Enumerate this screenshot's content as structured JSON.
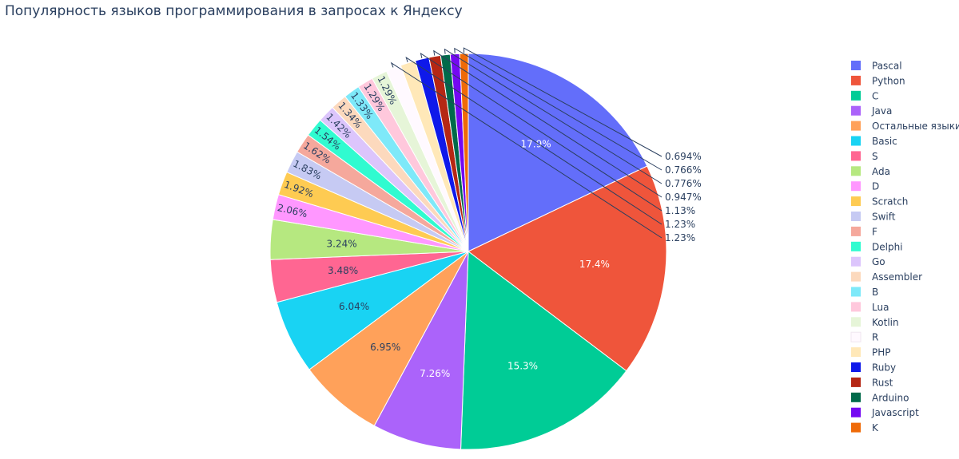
{
  "chart_data": {
    "type": "pie",
    "title": "Популярность языков программирования в запросах к Яндексу",
    "legend_position": "right",
    "slices": [
      {
        "label": "Pascal",
        "value": 17.9,
        "text": "17.9%",
        "color": "#636efa"
      },
      {
        "label": "Python",
        "value": 17.4,
        "text": "17.4%",
        "color": "#ef553b"
      },
      {
        "label": "C",
        "value": 15.3,
        "text": "15.3%",
        "color": "#00cc96"
      },
      {
        "label": "Java",
        "value": 7.26,
        "text": "7.26%",
        "color": "#ab63fa"
      },
      {
        "label": "Остальные языки",
        "value": 6.95,
        "text": "6.95%",
        "color": "#ffa15a"
      },
      {
        "label": "Basic",
        "value": 6.04,
        "text": "6.04%",
        "color": "#19d3f3"
      },
      {
        "label": "S",
        "value": 3.48,
        "text": "3.48%",
        "color": "#ff6692"
      },
      {
        "label": "Ada",
        "value": 3.24,
        "text": "3.24%",
        "color": "#b6e880"
      },
      {
        "label": "D",
        "value": 2.06,
        "text": "2.06%",
        "color": "#ff97ff"
      },
      {
        "label": "Scratch",
        "value": 1.92,
        "text": "1.92%",
        "color": "#fecb52"
      },
      {
        "label": "Swift",
        "value": 1.83,
        "text": "1.83%",
        "color": "#c6caf3"
      },
      {
        "label": "F",
        "value": 1.62,
        "text": "1.62%",
        "color": "#f5a89c"
      },
      {
        "label": "Delphi",
        "value": 1.54,
        "text": "1.54%",
        "color": "#30fbd0"
      },
      {
        "label": "Go",
        "value": 1.42,
        "text": "1.42%",
        "color": "#dcc5fc"
      },
      {
        "label": "Assembler",
        "value": 1.34,
        "text": "1.34%",
        "color": "#fcd9bd"
      },
      {
        "label": "B",
        "value": 1.33,
        "text": "1.33%",
        "color": "#7ee9f9"
      },
      {
        "label": "Lua",
        "value": 1.29,
        "text": "1.29%",
        "color": "#ffc8dc"
      },
      {
        "label": "Kotlin",
        "value": 1.29,
        "text": "1.29%",
        "color": "#e6f5d8"
      },
      {
        "label": "R",
        "value": 1.23,
        "text": "1.23%",
        "color": "#fff9ff"
      },
      {
        "label": "PHP",
        "value": 1.23,
        "text": "1.23%",
        "color": "#ffe8b8"
      },
      {
        "label": "Ruby",
        "value": 1.13,
        "text": "1.13%",
        "color": "#0f19ea"
      },
      {
        "label": "Rust",
        "value": 0.947,
        "text": "0.947%",
        "color": "#b52714"
      },
      {
        "label": "Arduino",
        "value": 0.776,
        "text": "0.776%",
        "color": "#006a4a"
      },
      {
        "label": "Javascript",
        "value": 0.766,
        "text": "0.766%",
        "color": "#7408f2"
      },
      {
        "label": "K",
        "value": 0.694,
        "text": "0.694%",
        "color": "#ef6a08"
      }
    ]
  }
}
